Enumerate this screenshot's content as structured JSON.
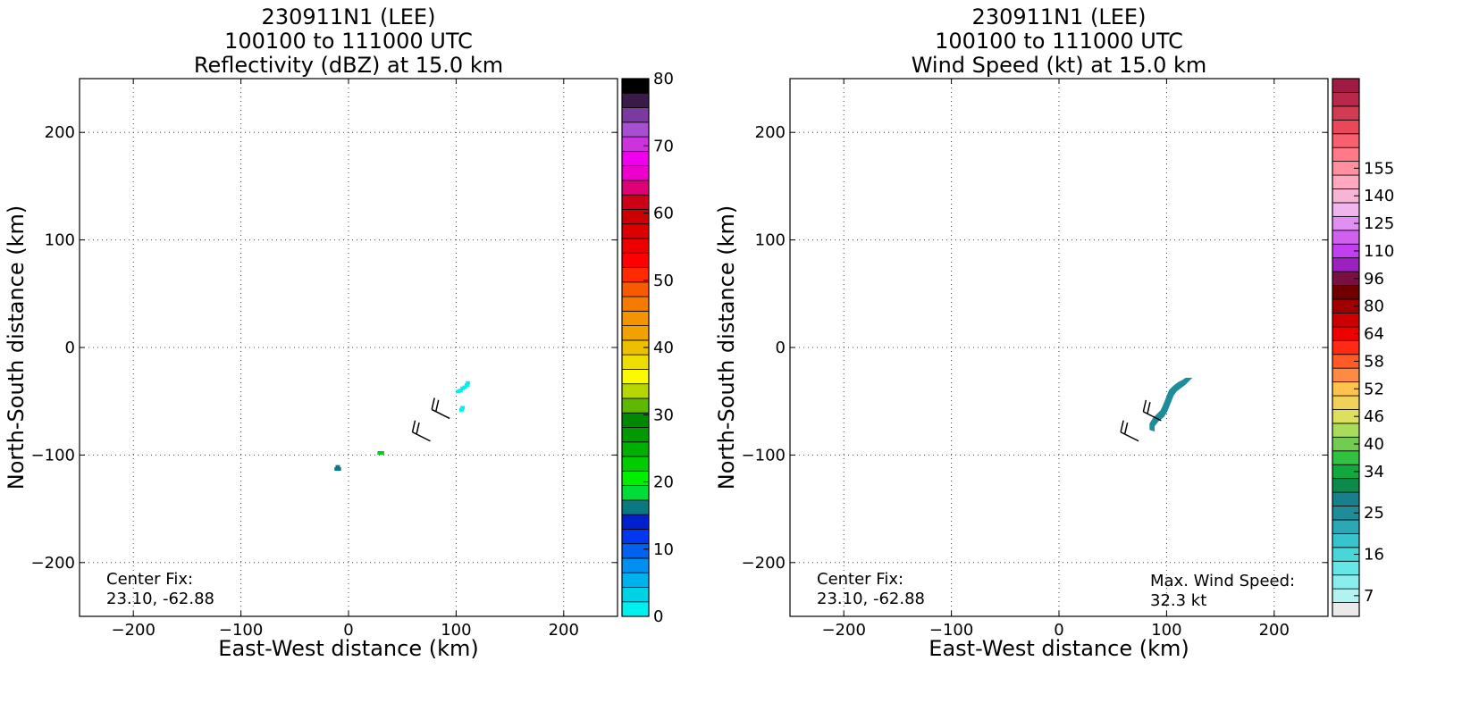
{
  "chart_data": [
    {
      "type": "heatmap",
      "title_lines": [
        "230911N1 (LEE)",
        "100100 to 111000 UTC",
        "Reflectivity (dBZ) at 15.0 km"
      ],
      "xlabel": "East-West distance (km)",
      "ylabel": "North-South distance (km)",
      "xlim": [
        -250,
        250
      ],
      "ylim": [
        -250,
        250
      ],
      "xticks": [
        -200,
        -100,
        0,
        100,
        200
      ],
      "yticks": [
        -200,
        -100,
        0,
        100,
        200
      ],
      "xtick_labels": [
        "−200",
        "−100",
        "0",
        "100",
        "200"
      ],
      "ytick_labels": [
        "−200",
        "−100",
        "0",
        "100",
        "200"
      ],
      "grid": true,
      "annotations": {
        "center_fix_label": "Center Fix:",
        "center_fix_value": "23.10, -62.88"
      },
      "cells": [
        {
          "x": 111,
          "y": -33,
          "color": "#00f0f0"
        },
        {
          "x": 110,
          "y": -35,
          "color": "#00f0f0"
        },
        {
          "x": 108,
          "y": -37,
          "color": "#00f0f0"
        },
        {
          "x": 106,
          "y": -38,
          "color": "#00f0f0"
        },
        {
          "x": 104,
          "y": -40,
          "color": "#00f0f0"
        },
        {
          "x": 102,
          "y": -41,
          "color": "#00f0f0"
        },
        {
          "x": 106,
          "y": -56,
          "color": "#00f0f0"
        },
        {
          "x": 105,
          "y": -58,
          "color": "#00f0f0"
        },
        {
          "x": 29,
          "y": -98,
          "color": "#00cc22"
        },
        {
          "x": 31,
          "y": -98,
          "color": "#00cc22"
        },
        {
          "x": -10,
          "y": -111,
          "color": "#0a7a80"
        },
        {
          "x": -9,
          "y": -113,
          "color": "#0a7a80"
        },
        {
          "x": -11,
          "y": -113,
          "color": "#0a7a80"
        }
      ],
      "barbs": [
        {
          "x": 76,
          "y": -87,
          "dir_to": "NW"
        },
        {
          "x": 94,
          "y": -66,
          "dir_to": "NW"
        }
      ],
      "colorbar": {
        "min": 0,
        "max": 80,
        "step": 2.5,
        "tick_values": [
          0,
          10,
          20,
          30,
          40,
          50,
          60,
          70,
          80
        ],
        "tick_labels": [
          "0",
          "10",
          "20",
          "30",
          "40",
          "50",
          "60",
          "70",
          "80"
        ],
        "colors": [
          "#00f0f0",
          "#00d2e6",
          "#00b2ec",
          "#0090f0",
          "#0063f0",
          "#0038f0",
          "#0020d0",
          "#0a7880",
          "#00dd3a",
          "#00ee00",
          "#00cc00",
          "#00b000",
          "#009a00",
          "#008800",
          "#5eb800",
          "#b5d600",
          "#fafa00",
          "#eedd00",
          "#ecc000",
          "#f2a200",
          "#f49400",
          "#f47a00",
          "#f85a00",
          "#ff2a00",
          "#ff0000",
          "#ee0000",
          "#dd0000",
          "#cc0000",
          "#cc0016",
          "#dd0077",
          "#ee00cc",
          "#ee00ee",
          "#cc33dd",
          "#a650d0",
          "#7a3aa0",
          "#3a1a48",
          "#000000"
        ]
      }
    },
    {
      "type": "heatmap",
      "title_lines": [
        "230911N1 (LEE)",
        "100100 to 111000 UTC",
        "Wind Speed (kt) at 15.0 km"
      ],
      "xlabel": "East-West distance (km)",
      "ylabel": "North-South distance (km)",
      "xlim": [
        -250,
        250
      ],
      "ylim": [
        -250,
        250
      ],
      "xticks": [
        -200,
        -100,
        0,
        100,
        200
      ],
      "yticks": [
        -200,
        -100,
        0,
        100,
        200
      ],
      "xtick_labels": [
        "−200",
        "−100",
        "0",
        "100",
        "200"
      ],
      "ytick_labels": [
        "−200",
        "−100",
        "0",
        "100",
        "200"
      ],
      "grid": true,
      "annotations": {
        "center_fix_label": "Center Fix:",
        "center_fix_value": "23.10, -62.88",
        "max_wind_label": "Max. Wind Speed:",
        "max_wind_value": "32.3 kt"
      },
      "swath": {
        "color": "#1f8c9a",
        "points": [
          [
            88,
            -73
          ],
          [
            92,
            -68
          ],
          [
            97,
            -64
          ],
          [
            100,
            -59
          ],
          [
            102,
            -54
          ],
          [
            104,
            -49
          ],
          [
            106,
            -44
          ],
          [
            109,
            -40
          ],
          [
            113,
            -37
          ],
          [
            117,
            -34
          ],
          [
            120,
            -31
          ],
          [
            122,
            -29
          ],
          [
            118,
            -29
          ],
          [
            115,
            -31
          ],
          [
            111,
            -33
          ],
          [
            107,
            -36
          ],
          [
            103,
            -40
          ],
          [
            101,
            -45
          ],
          [
            99,
            -50
          ],
          [
            97,
            -55
          ],
          [
            95,
            -59
          ],
          [
            91,
            -63
          ],
          [
            88,
            -66
          ],
          [
            85,
            -71
          ],
          [
            85,
            -76
          ],
          [
            88,
            -77
          ]
        ]
      },
      "barbs": [
        {
          "x": 74,
          "y": -87,
          "dir_to": "NW"
        },
        {
          "x": 95,
          "y": -68,
          "dir_to": "NW"
        }
      ],
      "colorbar": {
        "levels": [
          "0",
          "7",
          "10",
          "13",
          "16",
          "19",
          "22",
          "25",
          "28",
          "31",
          "34",
          "37",
          "40",
          "43",
          "46",
          "49",
          "52",
          "55",
          "58",
          "61",
          "64",
          "72",
          "80",
          "88",
          "96",
          "103",
          "110",
          "118",
          "125",
          "132",
          "140",
          "148",
          "155",
          "164"
        ],
        "tick_labels": [
          "7",
          "16",
          "25",
          "34",
          "40",
          "46",
          "52",
          "58",
          "64",
          "80",
          "96",
          "110",
          "125",
          "140",
          "155"
        ],
        "tick_level_index": [
          1,
          4,
          7,
          10,
          12,
          14,
          16,
          18,
          20,
          22,
          24,
          26,
          28,
          30,
          32
        ],
        "colors": [
          "#eaeaea",
          "#b4f2f2",
          "#8aeeee",
          "#66e6e6",
          "#4ad6d6",
          "#38c4cc",
          "#2aa8b4",
          "#1f8c9a",
          "#17808c",
          "#0c8a4a",
          "#12a840",
          "#32c040",
          "#72cc52",
          "#aadc5a",
          "#dde05e",
          "#f0d25a",
          "#ffc24e",
          "#ff8a44",
          "#ff5a28",
          "#ff2a14",
          "#ee0000",
          "#cc0000",
          "#a00000",
          "#700000",
          "#7a1042",
          "#9a20c0",
          "#c040f0",
          "#d060ee",
          "#e090f0",
          "#f0b4ee",
          "#f8b4d4",
          "#ffa8c0",
          "#ff90a0",
          "#ff7a88",
          "#f86070",
          "#e84858",
          "#d23c52",
          "#b8284a",
          "#a01a44"
        ]
      }
    }
  ]
}
